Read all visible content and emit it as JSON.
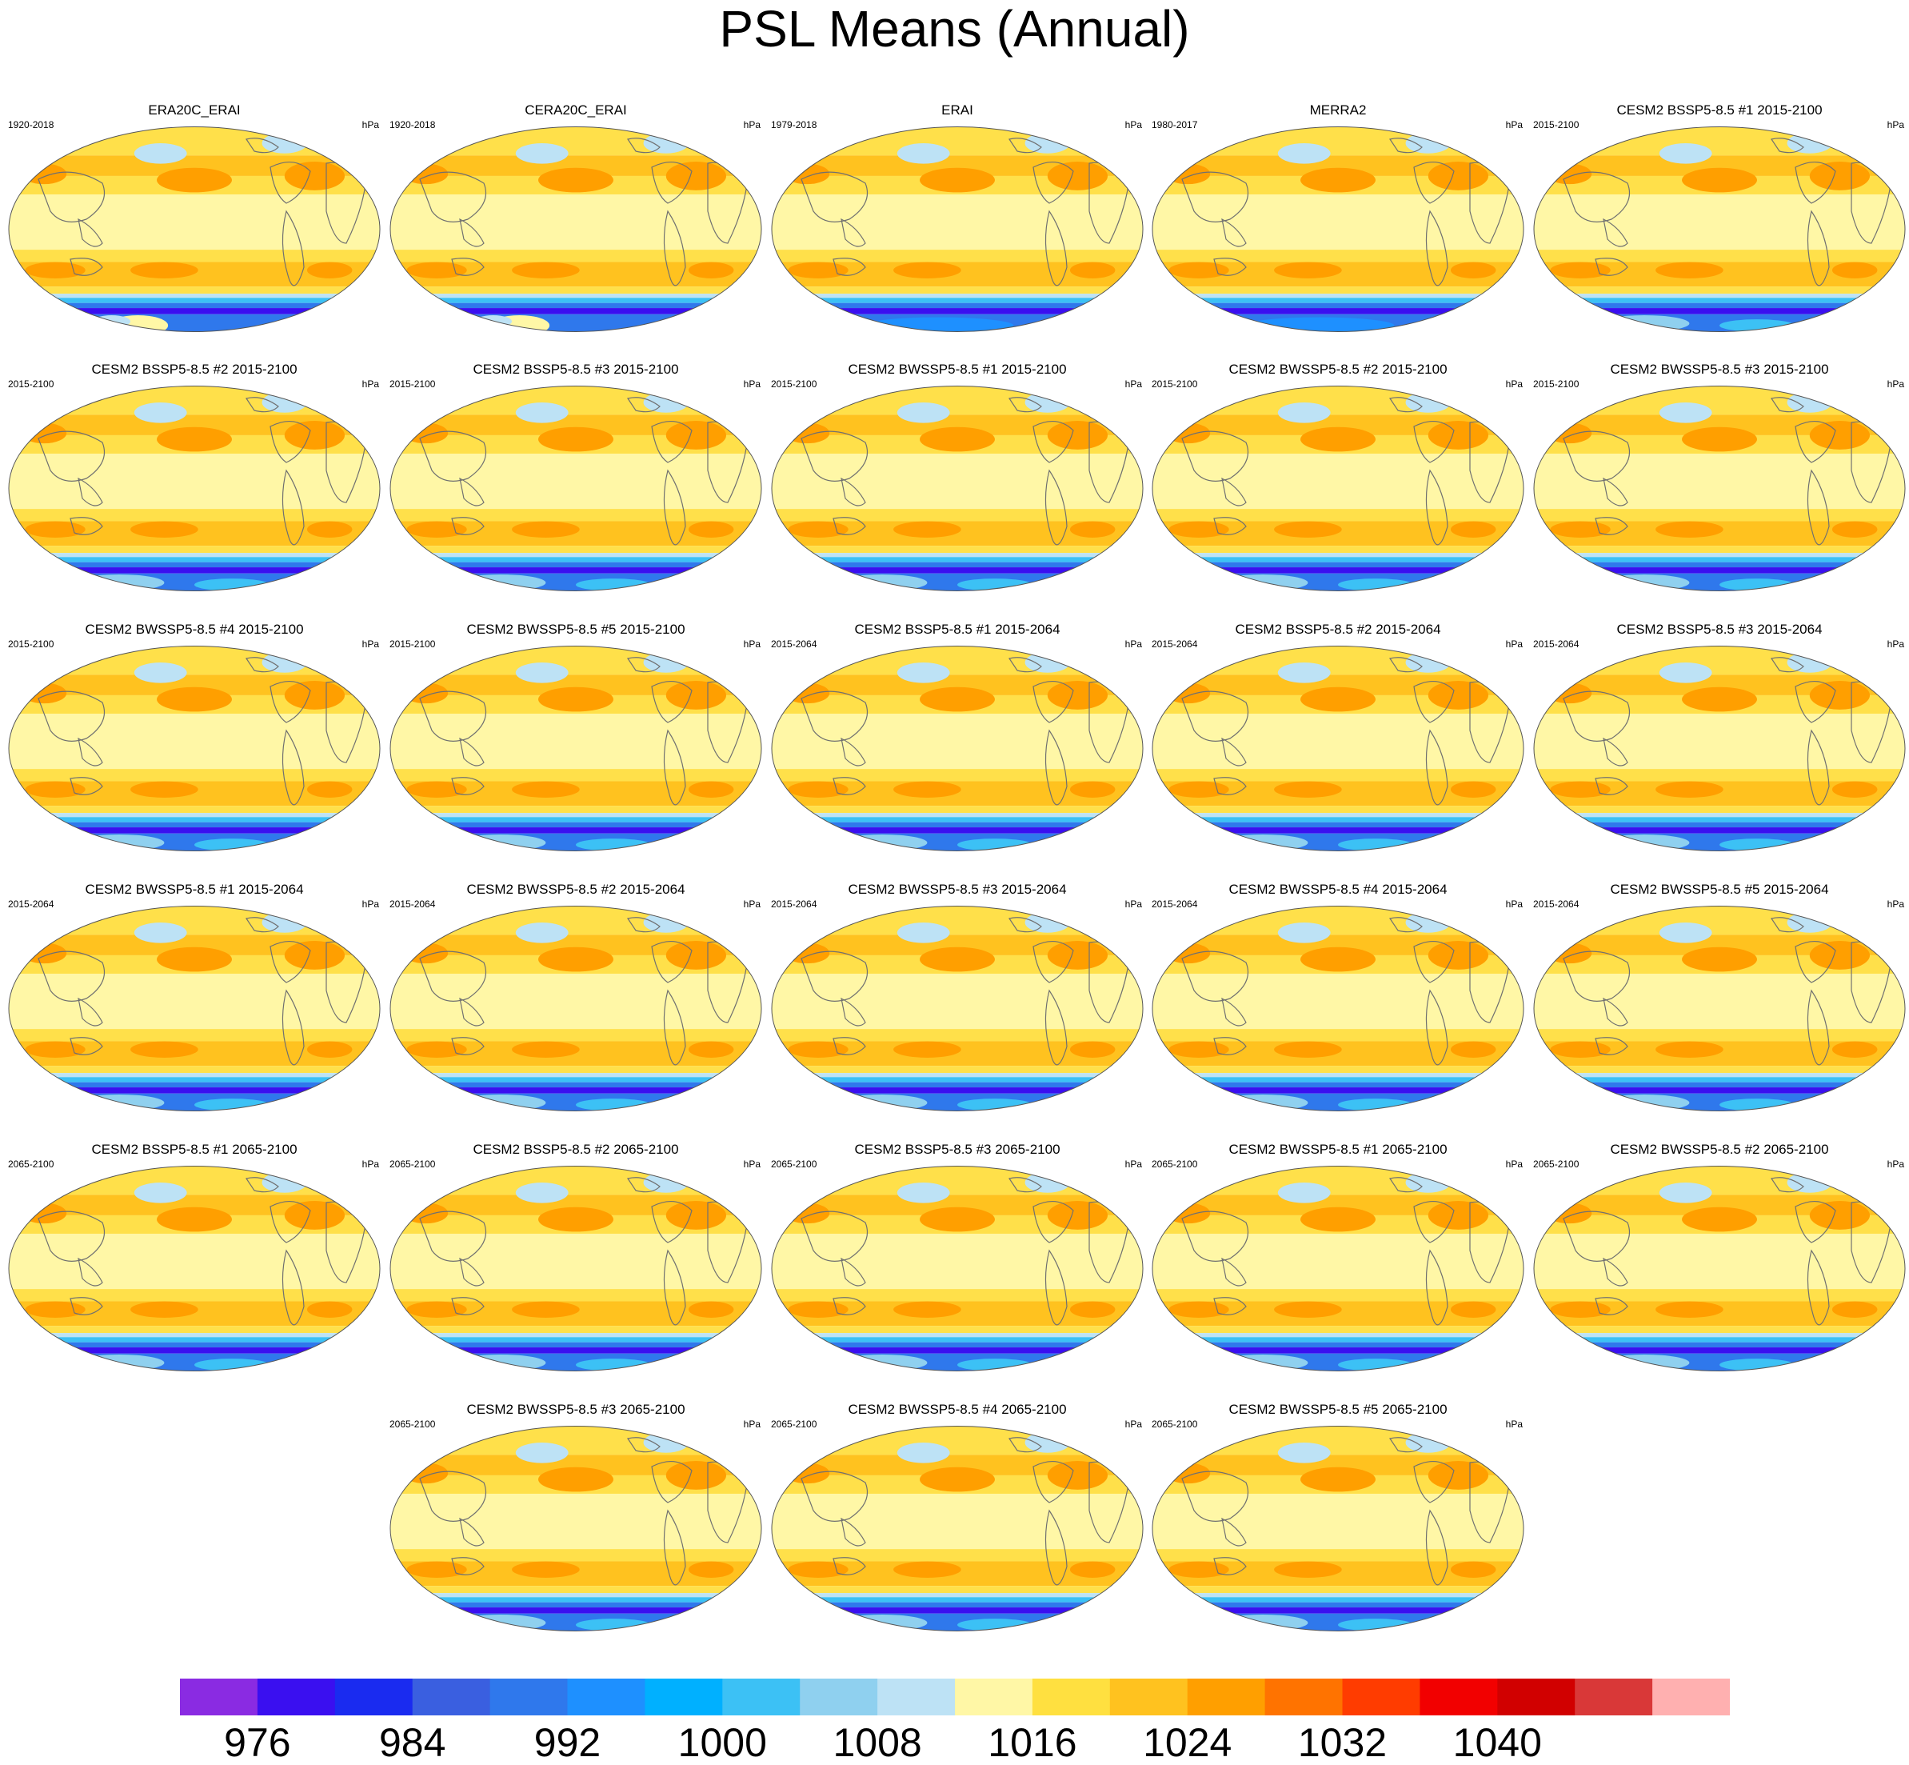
{
  "title": "PSL Means (Annual)",
  "units_label": "hPa",
  "panels": [
    {
      "title": "ERA20C_ERAI",
      "period": "1920-2018",
      "kind": "ERA20C"
    },
    {
      "title": "CERA20C_ERAI",
      "period": "1920-2018",
      "kind": "CERA20C"
    },
    {
      "title": "ERAI",
      "period": "1979-2018",
      "kind": "ERAI"
    },
    {
      "title": "MERRA2",
      "period": "1980-2017",
      "kind": "MERRA2"
    },
    {
      "title": "CESM2 BSSP5-8.5 #1 2015-2100",
      "period": "2015-2100",
      "kind": "model"
    },
    {
      "title": "CESM2 BSSP5-8.5 #2 2015-2100",
      "period": "2015-2100",
      "kind": "model"
    },
    {
      "title": "CESM2 BSSP5-8.5 #3 2015-2100",
      "period": "2015-2100",
      "kind": "model"
    },
    {
      "title": "CESM2 BWSSP5-8.5 #1 2015-2100",
      "period": "2015-2100",
      "kind": "model"
    },
    {
      "title": "CESM2 BWSSP5-8.5 #2 2015-2100",
      "period": "2015-2100",
      "kind": "model"
    },
    {
      "title": "CESM2 BWSSP5-8.5 #3 2015-2100",
      "period": "2015-2100",
      "kind": "model"
    },
    {
      "title": "CESM2 BWSSP5-8.5 #4 2015-2100",
      "period": "2015-2100",
      "kind": "model"
    },
    {
      "title": "CESM2 BWSSP5-8.5 #5 2015-2100",
      "period": "2015-2100",
      "kind": "model"
    },
    {
      "title": "CESM2 BSSP5-8.5 #1 2015-2064",
      "period": "2015-2064",
      "kind": "model"
    },
    {
      "title": "CESM2 BSSP5-8.5 #2 2015-2064",
      "period": "2015-2064",
      "kind": "model"
    },
    {
      "title": "CESM2 BSSP5-8.5 #3 2015-2064",
      "period": "2015-2064",
      "kind": "model"
    },
    {
      "title": "CESM2 BWSSP5-8.5 #1 2015-2064",
      "period": "2015-2064",
      "kind": "model"
    },
    {
      "title": "CESM2 BWSSP5-8.5 #2 2015-2064",
      "period": "2015-2064",
      "kind": "model"
    },
    {
      "title": "CESM2 BWSSP5-8.5 #3 2015-2064",
      "period": "2015-2064",
      "kind": "model"
    },
    {
      "title": "CESM2 BWSSP5-8.5 #4 2015-2064",
      "period": "2015-2064",
      "kind": "model"
    },
    {
      "title": "CESM2 BWSSP5-8.5 #5 2015-2064",
      "period": "2015-2064",
      "kind": "model"
    },
    {
      "title": "CESM2 BSSP5-8.5 #1 2065-2100",
      "period": "2065-2100",
      "kind": "model"
    },
    {
      "title": "CESM2 BSSP5-8.5 #2 2065-2100",
      "period": "2065-2100",
      "kind": "model"
    },
    {
      "title": "CESM2 BSSP5-8.5 #3 2065-2100",
      "period": "2065-2100",
      "kind": "model"
    },
    {
      "title": "CESM2 BWSSP5-8.5 #1 2065-2100",
      "period": "2065-2100",
      "kind": "model"
    },
    {
      "title": "CESM2 BWSSP5-8.5 #2 2065-2100",
      "period": "2065-2100",
      "kind": "model"
    },
    {
      "title": "CESM2 BWSSP5-8.5 #3 2065-2100",
      "period": "2065-2100",
      "kind": "model"
    },
    {
      "title": "CESM2 BWSSP5-8.5 #4 2065-2100",
      "period": "2065-2100",
      "kind": "model"
    },
    {
      "title": "CESM2 BWSSP5-8.5 #5 2065-2100",
      "period": "2065-2100",
      "kind": "model"
    }
  ],
  "colorbar": {
    "colors": [
      "#8a2be2",
      "#3a0ff0",
      "#1a2bf0",
      "#3a5fe0",
      "#2f78ec",
      "#1e90ff",
      "#00b0ff",
      "#3cc1f5",
      "#8fd0ef",
      "#bde2f5",
      "#fff7a6",
      "#ffe040",
      "#ffc21f",
      "#ff9f00",
      "#ff7300",
      "#ff3c00",
      "#f20000",
      "#d10000",
      "#d93838",
      "#ffb0b0"
    ],
    "tick_labels": [
      "976",
      "984",
      "992",
      "1000",
      "1008",
      "1016",
      "1024",
      "1032",
      "1040"
    ]
  },
  "chart_data": {
    "type": "heatmap",
    "title": "PSL Means (Annual)",
    "panel_count": 28,
    "units": "hPa",
    "color_levels": [
      972,
      976,
      980,
      984,
      988,
      992,
      996,
      1000,
      1004,
      1008,
      1012,
      1016,
      1020,
      1024,
      1028,
      1032,
      1036,
      1040,
      1044
    ],
    "colorbar_tick_labels": [
      976,
      984,
      992,
      1000,
      1008,
      1016,
      1024,
      1032,
      1040
    ],
    "legend_position": "bottom"
  }
}
